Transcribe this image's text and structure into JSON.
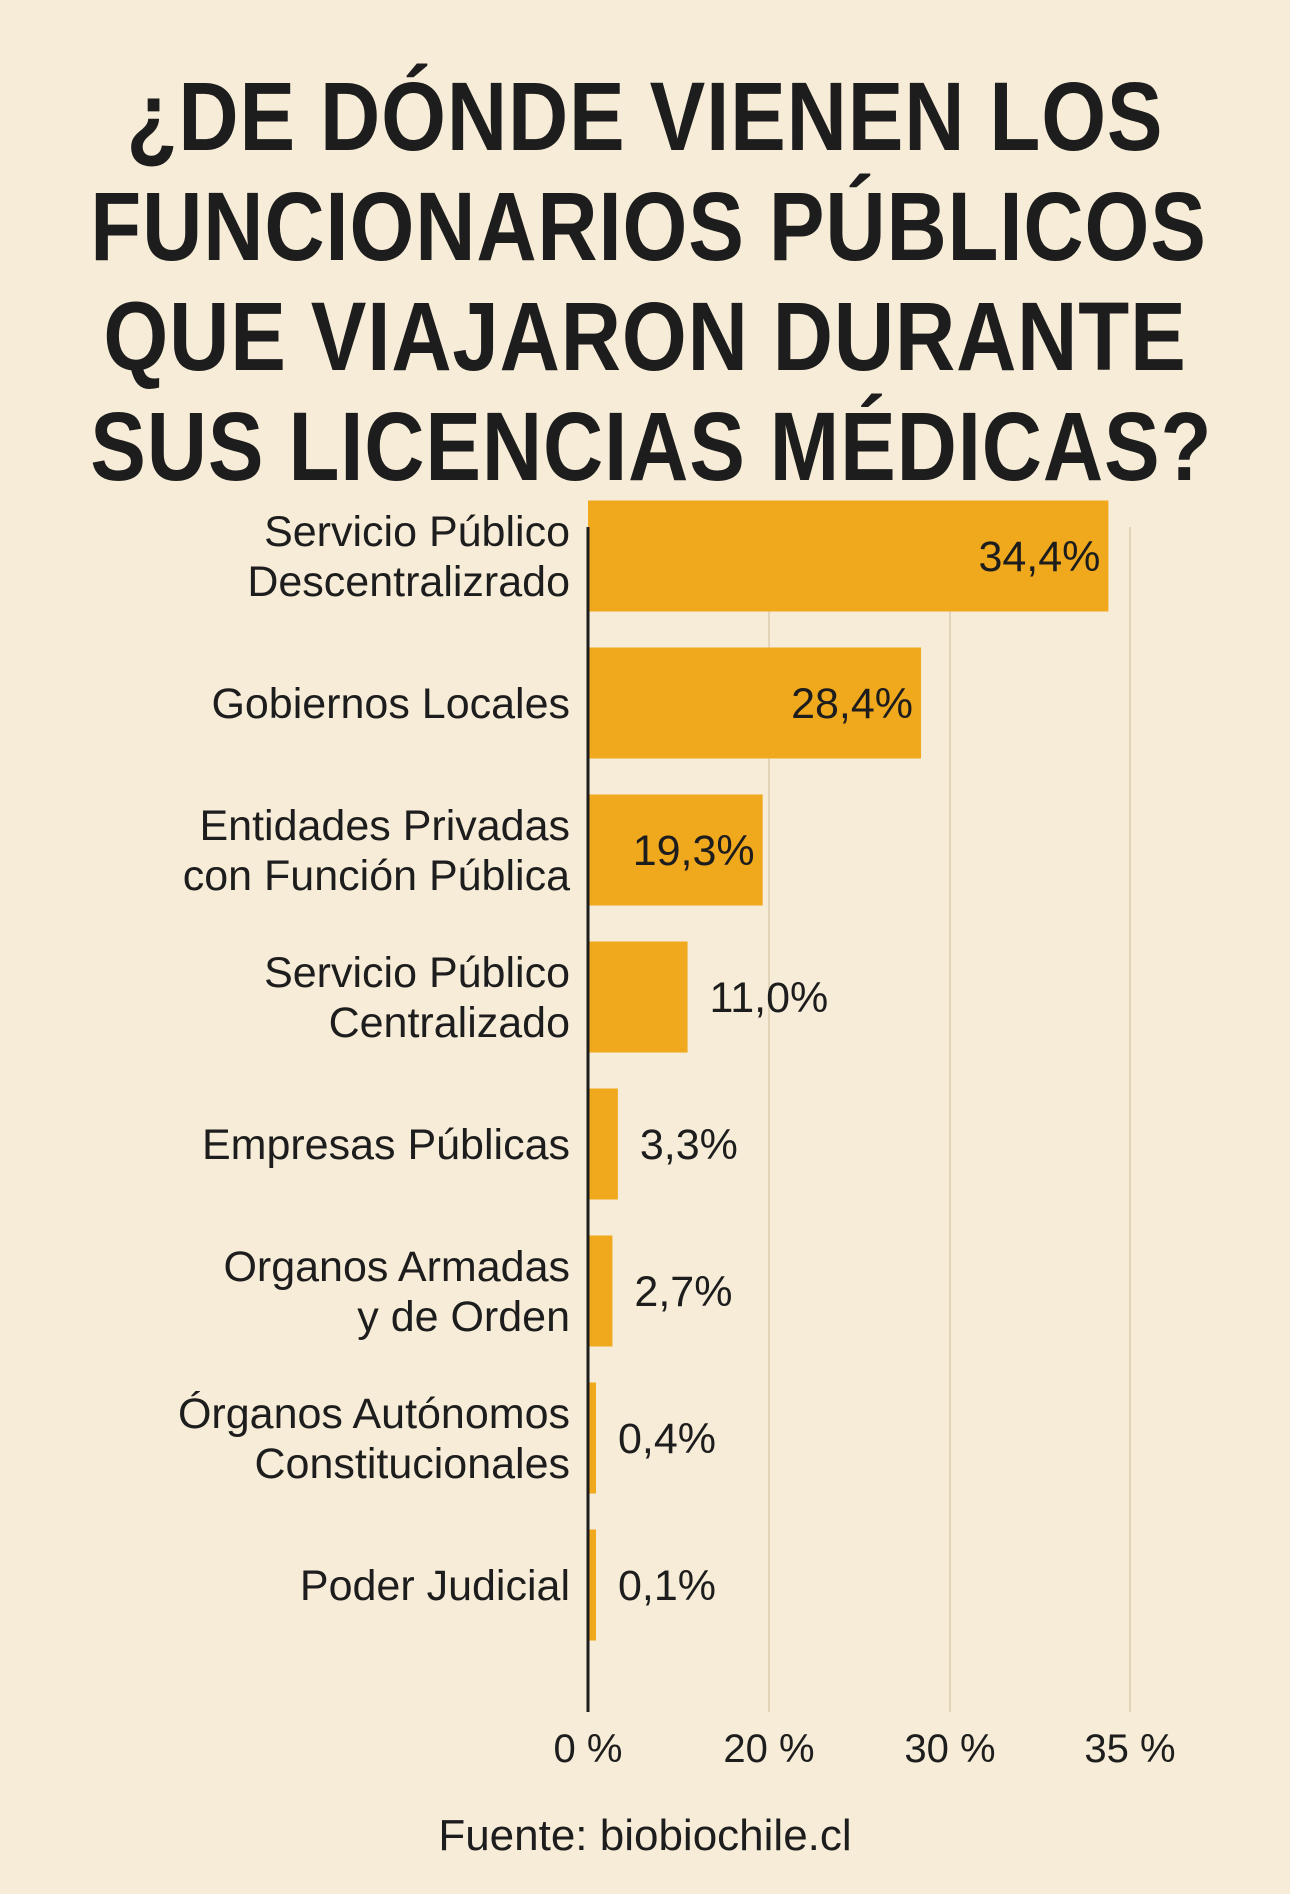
{
  "title_lines": [
    "¿DE DÓNDE VIENEN LOS",
    "FUNCIONARIOS PÚBLICOS",
    "QUE VIAJARON DURANTE",
    "SUS LICENCIAS MÉDICAS?"
  ],
  "source": "Fuente: biobiochile.cl",
  "colors": {
    "background": "#f6ecd7",
    "bar": "#f0a81c",
    "text": "#1d1d1d",
    "axis": "#1d1d1d",
    "grid": "#e3d5ba"
  },
  "chart_data": {
    "type": "bar",
    "orientation": "horizontal",
    "categories": [
      [
        "Servicio Público",
        "Descentralizrado"
      ],
      [
        "Gobiernos Locales"
      ],
      [
        "Entidades Privadas",
        "con Función Pública"
      ],
      [
        "Servicio Público",
        "Centralizado"
      ],
      [
        "Empresas Públicas"
      ],
      [
        "Organos Armadas",
        "y de Orden"
      ],
      [
        "Órganos Autónomos",
        "Constitucionales"
      ],
      [
        "Poder Judicial"
      ]
    ],
    "values": [
      34.4,
      28.4,
      19.3,
      11.0,
      3.3,
      2.7,
      0.4,
      0.1
    ],
    "value_labels": [
      "34,4%",
      "28,4%",
      "19,3%",
      "11,0%",
      "3,3%",
      "2,7%",
      "0,4%",
      "0,1%"
    ],
    "x_ticks": [
      {
        "value": 0,
        "label": "0 %"
      },
      {
        "value": 20,
        "label": "20 %"
      },
      {
        "value": 30,
        "label": "30 %"
      },
      {
        "value": 35,
        "label": "35 %"
      }
    ],
    "grid": true,
    "legend": "none"
  }
}
